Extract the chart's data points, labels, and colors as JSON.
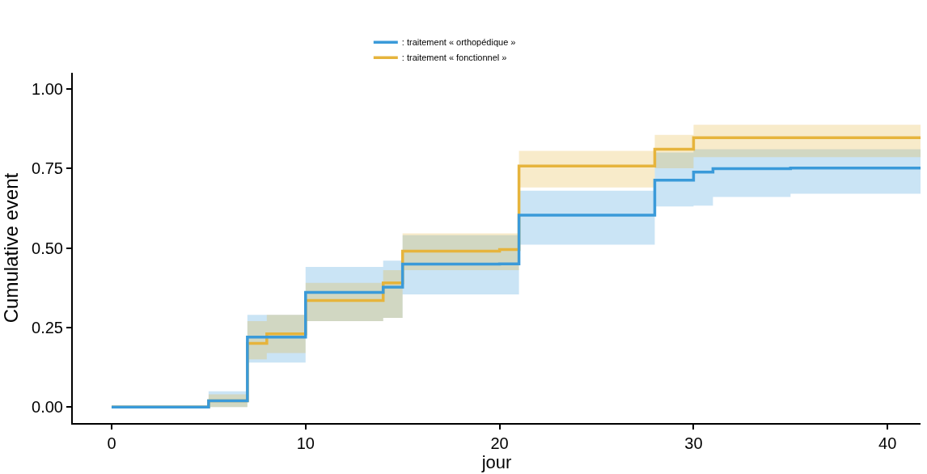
{
  "chart_data": {
    "type": "step",
    "xlabel": "jour",
    "ylabel": "Cumulative event",
    "xlim": [
      -2,
      41.7
    ],
    "xticks": [
      0,
      10,
      20,
      30,
      40
    ],
    "ylim": [
      -0.05,
      1.05
    ],
    "yticks": [
      {
        "value": 0,
        "label": "0.00"
      },
      {
        "value": 0.25,
        "label": "0.25"
      },
      {
        "value": 0.5,
        "label": "0.50"
      },
      {
        "value": 0.75,
        "label": "0.75"
      },
      {
        "value": 1,
        "label": "1.00"
      }
    ],
    "grid": false,
    "legend": "top",
    "marker": "none",
    "line_style": "solid",
    "series": [
      {
        "name": ": traitement « orthopédique »",
        "color": "#3a9ad9",
        "x": [
          0,
          5,
          7,
          10,
          14,
          15,
          20,
          21,
          28,
          30,
          31,
          35,
          41.7
        ],
        "values": [
          0,
          0.02,
          0.22,
          0.36,
          0.377,
          0.449,
          0.45,
          0.603,
          0.713,
          0.738,
          0.749,
          0.751,
          0.751
        ],
        "lower": [
          0,
          0,
          0.14,
          0.27,
          0.28,
          0.354,
          0.354,
          0.51,
          0.63,
          0.633,
          0.66,
          0.67,
          0.67
        ],
        "upper": [
          0,
          0.05,
          0.29,
          0.44,
          0.46,
          0.54,
          0.54,
          0.68,
          0.8,
          0.81,
          0.81,
          0.81,
          0.81
        ]
      },
      {
        "name": ": traitement « fonctionnel »",
        "color": "#e6b43c",
        "x": [
          0,
          5,
          7,
          8,
          10,
          14,
          15,
          20,
          21,
          28,
          30,
          41.7
        ],
        "values": [
          0,
          0.02,
          0.2,
          0.23,
          0.335,
          0.39,
          0.49,
          0.495,
          0.757,
          0.81,
          0.846,
          0.846
        ],
        "lower": [
          0,
          0,
          0.15,
          0.17,
          0.27,
          0.28,
          0.43,
          0.43,
          0.69,
          0.75,
          0.785,
          0.785
        ],
        "upper": [
          0,
          0.04,
          0.27,
          0.29,
          0.39,
          0.43,
          0.546,
          0.546,
          0.805,
          0.855,
          0.887,
          0.887
        ]
      }
    ]
  }
}
